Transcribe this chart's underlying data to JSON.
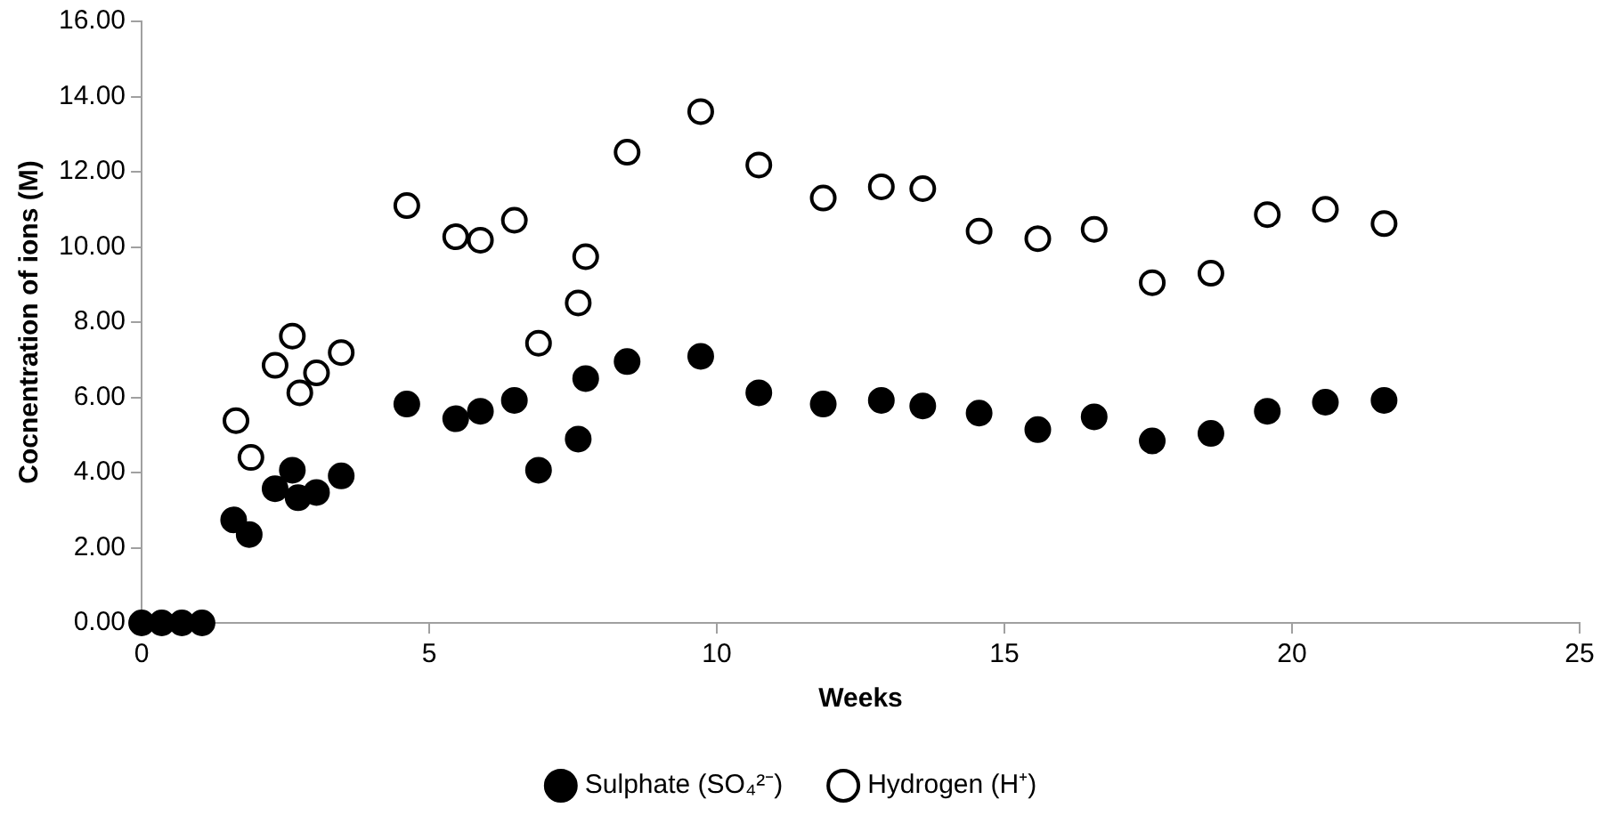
{
  "chart_data": {
    "type": "scatter",
    "xlabel": "Weeks",
    "ylabel": "Cocnentration of ions (M)",
    "xlim": [
      0,
      25
    ],
    "xticks": [
      0,
      5,
      10,
      15,
      20,
      25
    ],
    "ylim": [
      0,
      16
    ],
    "yticks": [
      {
        "value": 0,
        "label": "0.00"
      },
      {
        "value": 2,
        "label": "2.00"
      },
      {
        "value": 4,
        "label": "4.00"
      },
      {
        "value": 6,
        "label": "6.00"
      },
      {
        "value": 8,
        "label": "8.00"
      },
      {
        "value": 10,
        "label": "10.00"
      },
      {
        "value": 12,
        "label": "12.00"
      },
      {
        "value": 14,
        "label": "14.00"
      },
      {
        "value": 16,
        "label": "16.00"
      }
    ],
    "grid": false,
    "legend": "bottom",
    "marker": "circle",
    "series": [
      {
        "name": "Sulphate (SO₄²⁻)",
        "color": "#000000",
        "x": [
          0,
          0.35,
          0.7,
          1.05,
          1.6,
          1.87,
          2.32,
          2.62,
          2.72,
          3.04,
          3.47,
          4.61,
          5.46,
          5.89,
          6.48,
          6.9,
          7.59,
          7.72,
          8.44,
          9.72,
          10.73,
          11.85,
          12.86,
          13.58,
          14.56,
          15.58,
          16.56,
          17.57,
          18.59,
          19.57,
          20.58,
          21.6
        ],
        "values": [
          0,
          0,
          0,
          0,
          2.74,
          2.35,
          3.57,
          4.06,
          3.33,
          3.47,
          3.91,
          5.82,
          5.43,
          5.63,
          5.92,
          4.06,
          4.89,
          6.5,
          6.95,
          7.09,
          6.12,
          5.82,
          5.92,
          5.77,
          5.58,
          5.14,
          5.48,
          4.84,
          5.04,
          5.63,
          5.87,
          5.92
        ]
      },
      {
        "name": "Hydrogen (H⁺)",
        "color": "#ffffff",
        "x": [
          1.64,
          1.9,
          2.32,
          2.62,
          2.75,
          3.04,
          3.47,
          4.61,
          5.46,
          5.89,
          6.48,
          6.9,
          7.59,
          7.72,
          8.44,
          9.72,
          10.73,
          11.85,
          12.86,
          13.58,
          14.56,
          15.58,
          16.56,
          17.57,
          18.59,
          19.57,
          20.58,
          21.6
        ],
        "values": [
          5.38,
          4.4,
          6.85,
          7.63,
          6.12,
          6.65,
          7.19,
          11.1,
          10.27,
          10.18,
          10.71,
          7.44,
          8.51,
          9.74,
          12.52,
          13.6,
          12.18,
          11.3,
          11.6,
          11.55,
          10.42,
          10.22,
          10.47,
          9.05,
          9.3,
          10.86,
          11.0,
          10.62
        ]
      }
    ]
  }
}
